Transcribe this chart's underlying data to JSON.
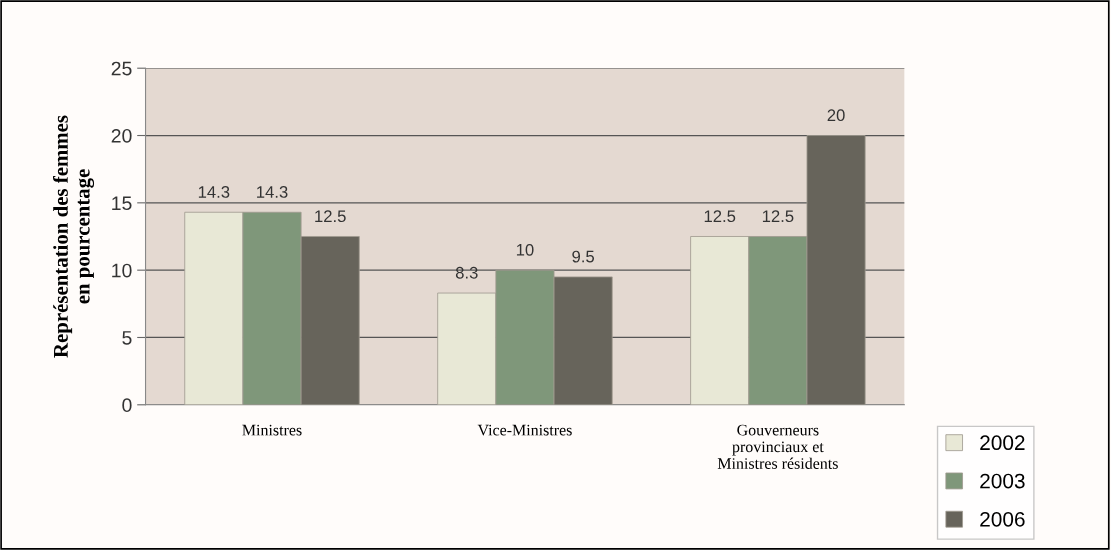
{
  "chart_data": {
    "type": "bar",
    "ylabel": "Représentation des femmes\nen pourcentage",
    "categories": [
      "Ministres",
      "Vice-Ministres",
      "Gouverneurs\nprovinciaux et\nMinistres résidents"
    ],
    "series": [
      {
        "name": "2002",
        "color": "#e8e8d6",
        "values": [
          14.3,
          8.3,
          12.5
        ]
      },
      {
        "name": "2003",
        "color": "#7f977a",
        "values": [
          14.3,
          10,
          12.5
        ]
      },
      {
        "name": "2006",
        "color": "#67645b",
        "values": [
          12.5,
          9.5,
          20
        ]
      }
    ],
    "ylim": [
      0,
      25
    ],
    "yticks": [
      0,
      5,
      10,
      15,
      20,
      25
    ],
    "grid": "y",
    "legend": "bottom right",
    "data_labels": true
  }
}
